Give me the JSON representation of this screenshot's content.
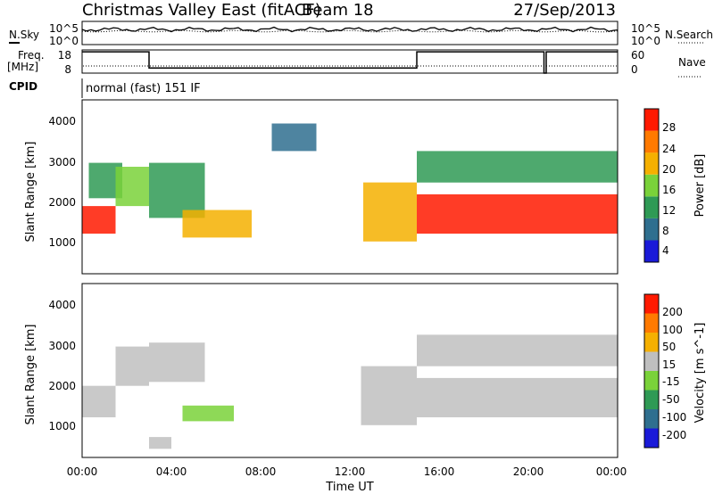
{
  "header": {
    "station": "Christmas Valley East (fitACF)",
    "beam": "Beam 18",
    "date": "27/Sep/2013"
  },
  "colors": {
    "dark_blue": "#1a1ad8",
    "blue_green": "#2f6f8f",
    "green": "#2f9a55",
    "lime": "#7ad23a",
    "yellow_orange": "#f5b000",
    "orange": "#ff7a00",
    "red": "#ff1a00",
    "grey": "#bfbfbf"
  },
  "chart_data": [
    {
      "type": "line",
      "name": "noise-panel",
      "left_label": "N.Sky",
      "right_label": "N.Search",
      "left_ticks": [
        "10^5",
        "10^0"
      ],
      "right_ticks": [
        "10^5",
        "10^0"
      ],
      "x_range_hours": [
        0,
        24
      ]
    },
    {
      "type": "line",
      "name": "frequency-panel",
      "left_label_line1": "Freq.",
      "left_label_line2": "[MHz]",
      "left_ticks": [
        "18",
        "8"
      ],
      "right_label": "Nave",
      "right_ticks": [
        "60",
        "0"
      ],
      "series": [
        {
          "x": [
            0,
            3.0,
            3.0,
            15.0,
            15.0,
            20.7,
            20.7,
            20.8,
            20.8,
            24
          ],
          "y": [
            17.2,
            17.2,
            10.2,
            10.2,
            17.2,
            17.2,
            8.0,
            8.0,
            17.2,
            17.2
          ]
        }
      ],
      "ylim": [
        8,
        18
      ]
    },
    {
      "type": "text",
      "name": "cpid-panel",
      "label": "CPID",
      "mode": "normal (fast) 151 IF"
    },
    {
      "type": "heatmap",
      "name": "power-panel",
      "ylabel": "Slant Range [km]",
      "y_ticks": [
        "4000",
        "3000",
        "2000",
        "1000"
      ],
      "ylim": [
        180,
        4600
      ],
      "xlim": [
        0,
        24
      ],
      "colorbar_label": "Power [dB]",
      "colorbar_ticks": [
        "28",
        "24",
        "20",
        "16",
        "12",
        "8",
        "4"
      ],
      "colorbar_colors": [
        "#1a1ad8",
        "#2f6f8f",
        "#2f9a55",
        "#7ad23a",
        "#f5b000",
        "#ff7a00",
        "#ff1a00"
      ],
      "color_range": [
        0,
        30
      ],
      "regions": [
        {
          "x": [
            0.0,
            1.5
          ],
          "y": [
            1200,
            1900
          ],
          "value": 26
        },
        {
          "x": [
            0.3,
            1.8
          ],
          "y": [
            2100,
            3000
          ],
          "value": 10
        },
        {
          "x": [
            1.5,
            3.0
          ],
          "y": [
            1900,
            2900
          ],
          "value": 16
        },
        {
          "x": [
            3.0,
            5.5
          ],
          "y": [
            1600,
            3000
          ],
          "value": 12
        },
        {
          "x": [
            4.5,
            7.6
          ],
          "y": [
            1100,
            1800
          ],
          "value": 18
        },
        {
          "x": [
            8.5,
            10.5
          ],
          "y": [
            3300,
            4000
          ],
          "value": 6
        },
        {
          "x": [
            12.6,
            15.0
          ],
          "y": [
            1000,
            2500
          ],
          "value": 20
        },
        {
          "x": [
            15.0,
            24.0
          ],
          "y": [
            1200,
            2200
          ],
          "value": 26
        },
        {
          "x": [
            15.0,
            24.0
          ],
          "y": [
            2500,
            3300
          ],
          "value": 10
        }
      ]
    },
    {
      "type": "heatmap",
      "name": "velocity-panel",
      "ylabel": "Slant Range [km]",
      "y_ticks": [
        "4000",
        "3000",
        "2000",
        "1000"
      ],
      "ylim": [
        180,
        4600
      ],
      "xlim": [
        0,
        24
      ],
      "xlabel": "Time UT",
      "x_ticks": [
        "00:00",
        "04:00",
        "08:00",
        "12:00",
        "16:00",
        "20:00",
        "00:00"
      ],
      "colorbar_label": "Velocity [m s^-1]",
      "colorbar_ticks": [
        "200",
        "100",
        "50",
        "15",
        "-15",
        "-50",
        "-100",
        "-200"
      ],
      "colorbar_colors": [
        "#1a1ad8",
        "#2f6f8f",
        "#2f9a55",
        "#7ad23a",
        "#bfbfbf",
        "#f5b000",
        "#ff7a00",
        "#ff1a00"
      ],
      "color_range": [
        -250,
        250
      ],
      "regions": [
        {
          "x": [
            0.0,
            1.5
          ],
          "y": [
            1200,
            2000
          ],
          "value": 0
        },
        {
          "x": [
            1.5,
            3.0
          ],
          "y": [
            2000,
            3000
          ],
          "value": 0
        },
        {
          "x": [
            3.0,
            5.5
          ],
          "y": [
            2100,
            3100
          ],
          "value": 0
        },
        {
          "x": [
            4.5,
            6.8
          ],
          "y": [
            1100,
            1500
          ],
          "value": -40
        },
        {
          "x": [
            12.5,
            15.0
          ],
          "y": [
            1000,
            2500
          ],
          "value": 30
        },
        {
          "x": [
            15.0,
            24.0
          ],
          "y": [
            1200,
            2200
          ],
          "value": 0
        },
        {
          "x": [
            15.0,
            24.0
          ],
          "y": [
            2500,
            3300
          ],
          "value": 0
        },
        {
          "x": [
            3.0,
            4.0
          ],
          "y": [
            400,
            700
          ],
          "value": 30
        }
      ]
    }
  ]
}
